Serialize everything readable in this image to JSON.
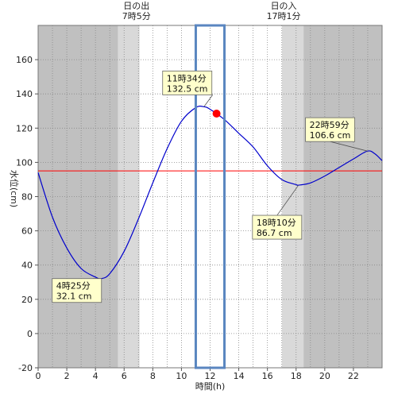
{
  "chart_data": {
    "type": "line",
    "title": "",
    "xlabel": "時間(h)",
    "ylabel": "水位(cm)",
    "xlim": [
      0,
      24
    ],
    "ylim": [
      -20,
      180
    ],
    "x_ticks": [
      0,
      2,
      4,
      6,
      8,
      10,
      12,
      14,
      16,
      18,
      20,
      22
    ],
    "y_ticks": [
      -20,
      0,
      20,
      40,
      60,
      80,
      100,
      120,
      140,
      160
    ],
    "grid": true,
    "reference_level": 95,
    "highlight_window": [
      11,
      13
    ],
    "current_point": {
      "x": 12.45,
      "y": 128.5
    },
    "sunrise": {
      "label_line1": "日の出",
      "label_line2": "7時5分",
      "hour": 7.08
    },
    "sunset": {
      "label_line1": "日の入",
      "label_line2": "17時1分",
      "hour": 17.02
    },
    "series": [
      {
        "x": [
          0,
          1,
          2,
          3,
          4,
          4.42,
          5,
          6,
          7,
          8,
          9,
          10,
          11,
          11.57,
          12,
          13,
          14,
          15,
          16,
          17,
          18,
          18.17,
          19,
          20,
          21,
          22,
          22.98,
          23.5,
          24
        ],
        "values": [
          94,
          68,
          50,
          38,
          33,
          32.1,
          35,
          48,
          67,
          88,
          108,
          124,
          132,
          132.5,
          131,
          125,
          117,
          109,
          98,
          90,
          87,
          86.7,
          88,
          92,
          97,
          102,
          106.6,
          105,
          101
        ]
      }
    ],
    "annotations": [
      {
        "line1": "4時25分",
        "line2": "32.1 cm",
        "x": 4.42,
        "y": 32.1
      },
      {
        "line1": "11時34分",
        "line2": "132.5 cm",
        "x": 11.57,
        "y": 132.5
      },
      {
        "line1": "18時10分",
        "line2": "86.7 cm",
        "x": 18.17,
        "y": 86.7
      },
      {
        "line1": "22時59分",
        "line2": "106.6 cm",
        "x": 22.98,
        "y": 106.6
      }
    ],
    "colors": {
      "night": "#c0c0c0",
      "twilight": "#d9d9d9",
      "day": "#ffffff",
      "line": "#0000cc",
      "reference": "#ff0000",
      "window": "#5a86c0",
      "point": "#ff0000",
      "annotation_bg": "#ffffcc"
    }
  }
}
